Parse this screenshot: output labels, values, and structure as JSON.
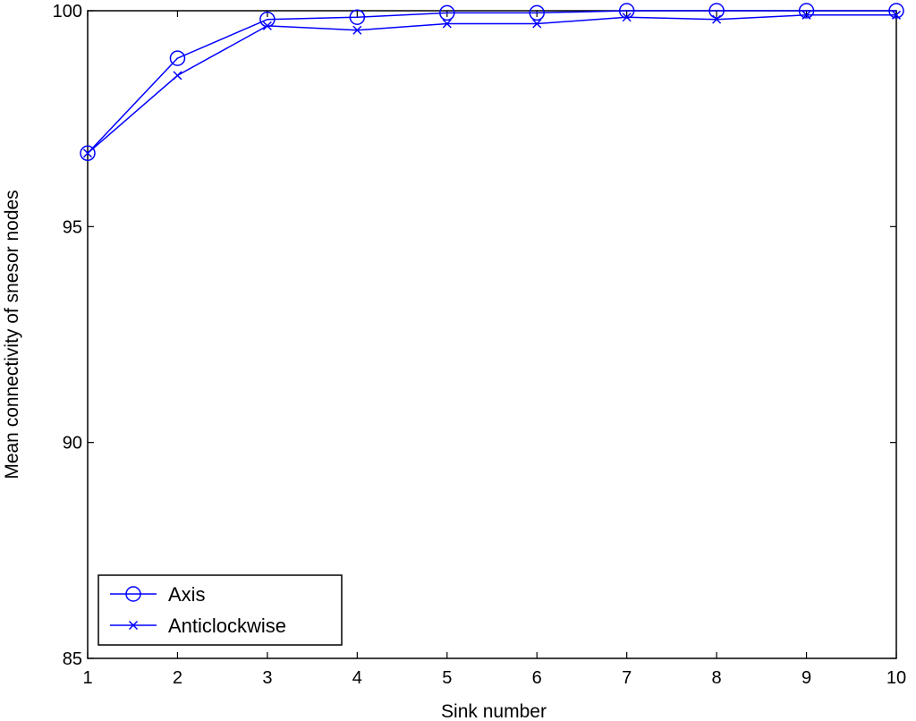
{
  "chart_data": {
    "type": "line",
    "title": "",
    "xlabel": "Sink number",
    "ylabel": "Mean connectivity of snesor nodes",
    "xlim": [
      1,
      10
    ],
    "ylim": [
      85,
      100
    ],
    "xticks": [
      "1",
      "2",
      "3",
      "4",
      "5",
      "6",
      "7",
      "8",
      "9",
      "10"
    ],
    "yticks": [
      "85",
      "90",
      "95",
      "100"
    ],
    "x": [
      1,
      2,
      3,
      4,
      5,
      6,
      7,
      8,
      9,
      10
    ],
    "grid": false,
    "legend_position": "bottom-left",
    "series": [
      {
        "name": "Axis",
        "marker": "circle",
        "color": "#0000ff",
        "values": [
          96.7,
          98.9,
          99.8,
          99.85,
          99.95,
          99.95,
          100.0,
          100.0,
          100.0,
          100.0
        ]
      },
      {
        "name": "Anticlockwise",
        "marker": "x",
        "color": "#0000ff",
        "values": [
          96.7,
          98.5,
          99.65,
          99.55,
          99.7,
          99.7,
          99.85,
          99.8,
          99.9,
          99.9
        ]
      }
    ]
  }
}
